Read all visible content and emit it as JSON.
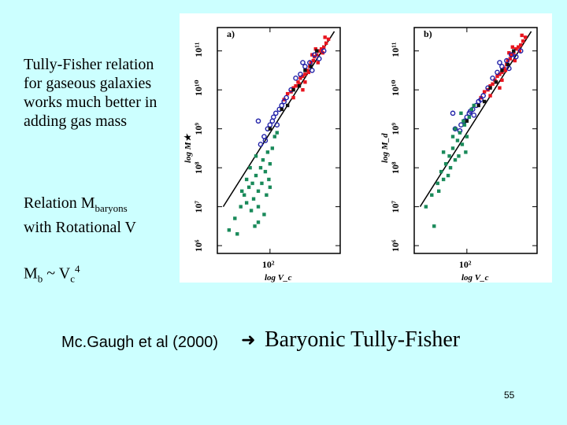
{
  "text": {
    "intro_lines": [
      "Tully-Fisher relation",
      "for gaseous galaxies",
      "works much better in",
      "adding gas mass"
    ],
    "relation_line1_prefix": "Relation M",
    "relation_line1_sub": "baryons",
    "relation_line2": "with Rotational V",
    "formula_M": "M",
    "formula_b": "b",
    "formula_mid": " ~ V",
    "formula_c": "c",
    "formula_exp": "4",
    "reference": "Mc.Gaugh et al (2000)",
    "arrow": "➜",
    "conclusion": "Baryonic Tully-Fisher",
    "page_number": "55"
  },
  "chart_data": [
    {
      "type": "scatter",
      "panel_label": "a)",
      "ylabel": "log M★",
      "xlabel": "log V_c",
      "y_ticks": [
        "10⁶",
        "10⁷",
        "10⁸",
        "10⁹",
        "10¹⁰",
        "10¹¹"
      ],
      "x_ticks": [
        "10²"
      ],
      "y_log_range": [
        5.8,
        11.6
      ],
      "x_log_range": [
        1.55,
        2.6
      ],
      "fit_line": [
        [
          1.6,
          7.0
        ],
        [
          2.55,
          11.5
        ]
      ],
      "series": [
        {
          "color": "#e8141e",
          "marker": "square",
          "points": [
            [
              2.12,
              9.75
            ],
            [
              2.15,
              9.9
            ],
            [
              2.18,
              9.95
            ],
            [
              2.2,
              10.05
            ],
            [
              2.22,
              10.1
            ],
            [
              2.24,
              10.2
            ],
            [
              2.26,
              10.3
            ],
            [
              2.28,
              10.35
            ],
            [
              2.3,
              10.4
            ],
            [
              2.32,
              10.5
            ],
            [
              2.34,
              10.6
            ],
            [
              2.35,
              10.7
            ],
            [
              2.37,
              10.75
            ],
            [
              2.38,
              10.85
            ],
            [
              2.4,
              10.9
            ],
            [
              2.42,
              11.0
            ],
            [
              2.44,
              11.05
            ],
            [
              2.46,
              11.1
            ],
            [
              2.48,
              11.2
            ],
            [
              2.47,
              11.35
            ],
            [
              2.36,
              10.9
            ],
            [
              2.3,
              10.2
            ],
            [
              2.25,
              10.15
            ],
            [
              2.33,
              10.45
            ],
            [
              2.41,
              10.7
            ],
            [
              2.2,
              9.8
            ],
            [
              2.39,
              11.05
            ],
            [
              2.45,
              10.95
            ],
            [
              2.28,
              10.0
            ],
            [
              2.5,
              11.3
            ]
          ]
        },
        {
          "color": "#2020a8",
          "marker": "circle",
          "points": [
            [
              1.92,
              8.6
            ],
            [
              1.95,
              8.8
            ],
            [
              1.98,
              9.0
            ],
            [
              2.0,
              9.1
            ],
            [
              2.02,
              9.2
            ],
            [
              2.05,
              9.4
            ],
            [
              2.08,
              9.5
            ],
            [
              2.1,
              9.6
            ],
            [
              2.14,
              9.8
            ],
            [
              2.18,
              10.0
            ],
            [
              2.22,
              10.3
            ],
            [
              2.26,
              10.4
            ],
            [
              2.3,
              10.6
            ],
            [
              2.34,
              10.7
            ],
            [
              2.38,
              10.9
            ],
            [
              2.42,
              10.8
            ],
            [
              2.46,
              11.0
            ],
            [
              1.9,
              9.2
            ],
            [
              2.06,
              9.1
            ],
            [
              2.12,
              9.7
            ],
            [
              2.28,
              10.7
            ],
            [
              2.36,
              10.5
            ],
            [
              1.96,
              8.7
            ],
            [
              2.03,
              9.3
            ]
          ]
        },
        {
          "color": "#1a8a5a",
          "marker": "square",
          "points": [
            [
              1.65,
              6.4
            ],
            [
              1.7,
              6.7
            ],
            [
              1.75,
              7.0
            ],
            [
              1.78,
              7.3
            ],
            [
              1.8,
              7.1
            ],
            [
              1.82,
              7.5
            ],
            [
              1.85,
              7.6
            ],
            [
              1.88,
              7.8
            ],
            [
              1.9,
              7.4
            ],
            [
              1.92,
              8.0
            ],
            [
              1.94,
              8.2
            ],
            [
              1.96,
              7.9
            ],
            [
              1.98,
              8.4
            ],
            [
              2.0,
              8.1
            ],
            [
              1.86,
              7.2
            ],
            [
              1.84,
              6.9
            ],
            [
              1.9,
              6.6
            ],
            [
              1.8,
              7.7
            ],
            [
              1.93,
              7.6
            ],
            [
              1.97,
              7.3
            ],
            [
              2.02,
              8.5
            ],
            [
              1.76,
              7.4
            ],
            [
              1.88,
              8.3
            ],
            [
              1.95,
              6.8
            ],
            [
              1.72,
              6.3
            ],
            [
              1.9,
              7.0
            ],
            [
              2.04,
              8.8
            ],
            [
              1.99,
              7.7
            ],
            [
              2.06,
              8.9
            ],
            [
              1.83,
              8.0
            ],
            [
              1.87,
              6.5
            ],
            [
              2.0,
              7.5
            ]
          ]
        },
        {
          "color": "#111111",
          "marker": "square",
          "points": [
            [
              2.0,
              9.0
            ],
            [
              2.1,
              9.5
            ],
            [
              2.2,
              10.0
            ],
            [
              2.3,
              10.5
            ],
            [
              2.4,
              11.0
            ],
            [
              2.15,
              9.6
            ],
            [
              2.25,
              10.1
            ],
            [
              2.35,
              10.6
            ]
          ]
        }
      ]
    },
    {
      "type": "scatter",
      "panel_label": "b)",
      "ylabel": "log M_d",
      "xlabel": "log V_c",
      "y_ticks": [
        "10⁶",
        "10⁷",
        "10⁸",
        "10⁹",
        "10¹⁰",
        "10¹¹"
      ],
      "x_ticks": [
        "10²"
      ],
      "y_log_range": [
        5.8,
        11.6
      ],
      "x_log_range": [
        1.55,
        2.6
      ],
      "fit_line": [
        [
          1.6,
          7.0
        ],
        [
          2.55,
          11.5
        ]
      ],
      "series": [
        {
          "color": "#e8141e",
          "marker": "square",
          "points": [
            [
              2.12,
              9.8
            ],
            [
              2.15,
              9.95
            ],
            [
              2.18,
              10.0
            ],
            [
              2.2,
              10.1
            ],
            [
              2.22,
              10.15
            ],
            [
              2.24,
              10.25
            ],
            [
              2.26,
              10.35
            ],
            [
              2.28,
              10.4
            ],
            [
              2.3,
              10.45
            ],
            [
              2.32,
              10.55
            ],
            [
              2.34,
              10.65
            ],
            [
              2.35,
              10.75
            ],
            [
              2.37,
              10.8
            ],
            [
              2.38,
              10.9
            ],
            [
              2.4,
              10.95
            ],
            [
              2.42,
              11.05
            ],
            [
              2.44,
              11.1
            ],
            [
              2.46,
              11.15
            ],
            [
              2.48,
              11.25
            ],
            [
              2.47,
              11.4
            ],
            [
              2.36,
              10.95
            ],
            [
              2.3,
              10.25
            ],
            [
              2.25,
              10.2
            ],
            [
              2.33,
              10.5
            ],
            [
              2.41,
              10.75
            ],
            [
              2.2,
              9.85
            ],
            [
              2.39,
              11.1
            ],
            [
              2.45,
              11.0
            ],
            [
              2.28,
              10.05
            ],
            [
              2.5,
              11.35
            ]
          ]
        },
        {
          "color": "#2020a8",
          "marker": "circle",
          "points": [
            [
              1.9,
              9.0
            ],
            [
              1.95,
              9.1
            ],
            [
              1.98,
              9.2
            ],
            [
              2.0,
              9.3
            ],
            [
              2.02,
              9.4
            ],
            [
              2.05,
              9.5
            ],
            [
              2.08,
              9.6
            ],
            [
              2.1,
              9.7
            ],
            [
              2.14,
              9.85
            ],
            [
              2.18,
              10.05
            ],
            [
              2.22,
              10.3
            ],
            [
              2.26,
              10.45
            ],
            [
              2.3,
              10.6
            ],
            [
              2.34,
              10.75
            ],
            [
              2.38,
              10.9
            ],
            [
              2.42,
              10.85
            ],
            [
              2.46,
              11.0
            ],
            [
              1.88,
              9.4
            ],
            [
              2.06,
              9.35
            ],
            [
              2.12,
              9.75
            ],
            [
              2.28,
              10.7
            ],
            [
              2.36,
              10.55
            ],
            [
              1.94,
              8.95
            ],
            [
              2.03,
              9.45
            ]
          ]
        },
        {
          "color": "#1a8a5a",
          "marker": "square",
          "points": [
            [
              1.65,
              7.0
            ],
            [
              1.7,
              7.3
            ],
            [
              1.75,
              7.6
            ],
            [
              1.78,
              7.9
            ],
            [
              1.8,
              7.7
            ],
            [
              1.82,
              8.1
            ],
            [
              1.85,
              8.3
            ],
            [
              1.88,
              8.5
            ],
            [
              1.9,
              8.2
            ],
            [
              1.92,
              8.7
            ],
            [
              1.94,
              8.9
            ],
            [
              1.96,
              8.6
            ],
            [
              1.98,
              9.1
            ],
            [
              2.0,
              8.8
            ],
            [
              1.86,
              8.0
            ],
            [
              1.84,
              7.8
            ],
            [
              1.72,
              6.5
            ],
            [
              1.8,
              8.4
            ],
            [
              1.93,
              8.3
            ],
            [
              1.97,
              9.2
            ],
            [
              2.02,
              9.3
            ],
            [
              1.76,
              7.4
            ],
            [
              1.88,
              8.8
            ],
            [
              1.95,
              9.4
            ],
            [
              2.04,
              9.5
            ],
            [
              1.9,
              9.0
            ],
            [
              2.06,
              9.6
            ],
            [
              1.99,
              8.4
            ]
          ]
        },
        {
          "color": "#111111",
          "marker": "square",
          "points": [
            [
              2.0,
              9.2
            ],
            [
              2.1,
              9.6
            ],
            [
              2.2,
              10.05
            ],
            [
              2.3,
              10.5
            ],
            [
              2.4,
              11.0
            ],
            [
              2.15,
              9.7
            ],
            [
              2.25,
              10.2
            ],
            [
              2.35,
              10.65
            ]
          ]
        }
      ]
    }
  ]
}
